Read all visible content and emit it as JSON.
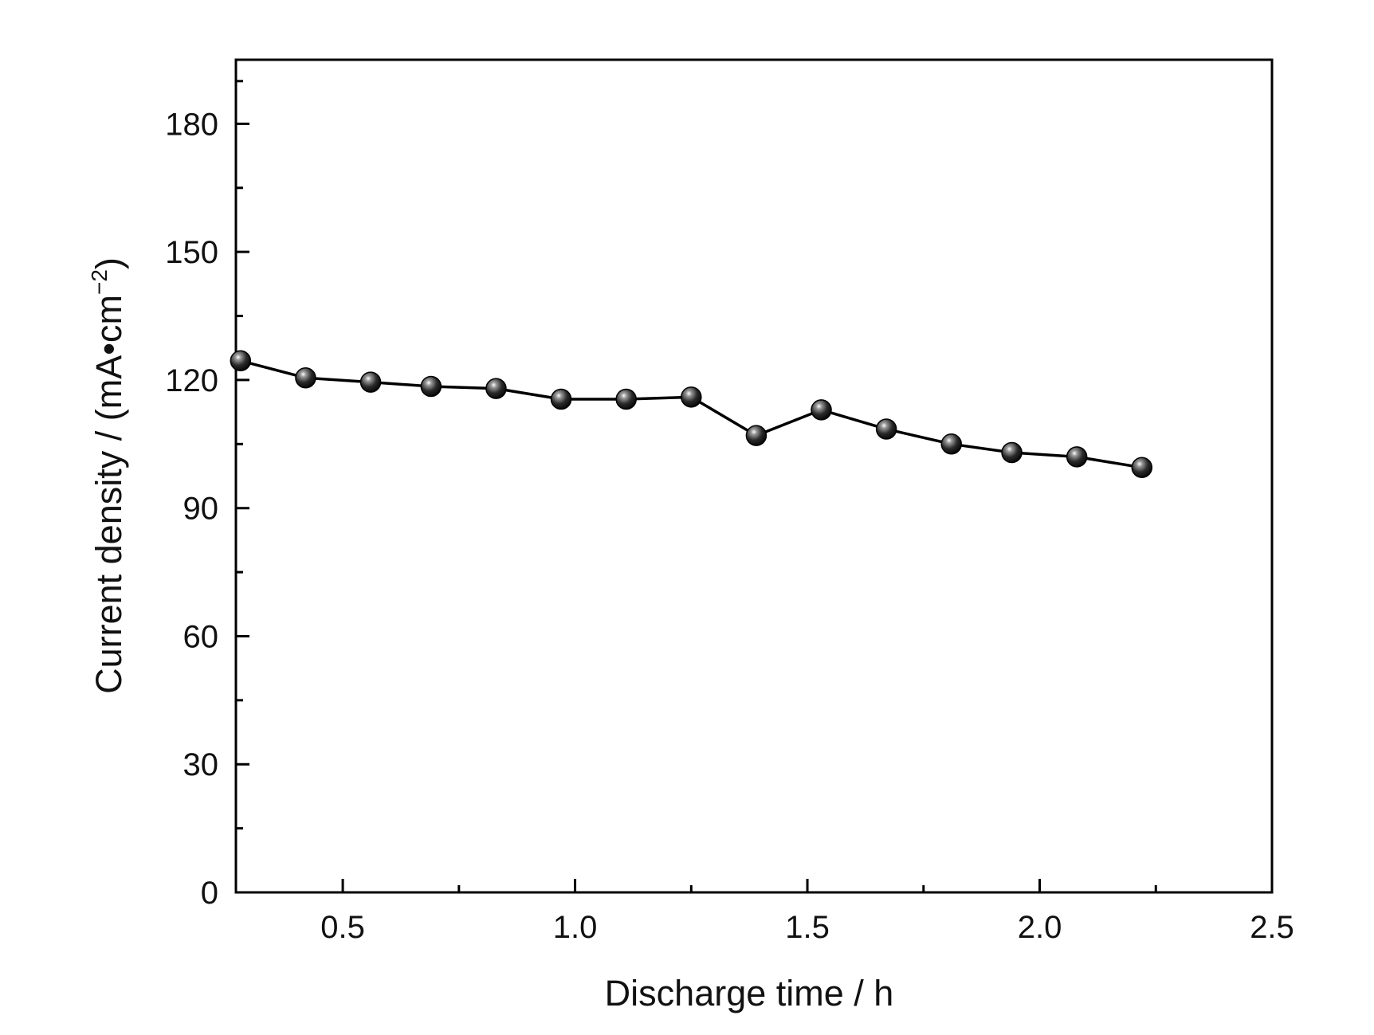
{
  "chart_data": {
    "type": "line",
    "title": "",
    "xlabel": "Discharge time / h",
    "ylabel_main": "Current density / (mA•cm",
    "ylabel_sup": "−2",
    "ylabel_close": ")",
    "xlim": [
      0.27,
      2.5
    ],
    "ylim": [
      0,
      195
    ],
    "x_major_ticks": [
      0.5,
      1.0,
      1.5,
      2.0,
      2.5
    ],
    "x_tick_labels": [
      "0.5",
      "1.0",
      "1.5",
      "2.0",
      "2.5"
    ],
    "x_minor_ticks": [
      0.75,
      1.25,
      1.75,
      2.25
    ],
    "y_major_ticks": [
      0,
      30,
      60,
      90,
      120,
      150,
      180
    ],
    "y_tick_labels": [
      "0",
      "30",
      "60",
      "90",
      "120",
      "150",
      "180"
    ],
    "y_minor_ticks": [
      15,
      45,
      75,
      105,
      135,
      165,
      190
    ],
    "grid": false,
    "legend": "none",
    "series": [
      {
        "color": "#000000",
        "marker": "sphere",
        "x": [
          0.28,
          0.42,
          0.56,
          0.69,
          0.83,
          0.97,
          1.11,
          1.25,
          1.39,
          1.53,
          1.67,
          1.81,
          1.94,
          2.08,
          2.22
        ],
        "y": [
          124.5,
          120.5,
          119.5,
          118.5,
          118,
          115.5,
          115.5,
          116,
          107,
          113,
          108.5,
          105,
          103,
          102,
          99.5
        ]
      }
    ]
  }
}
